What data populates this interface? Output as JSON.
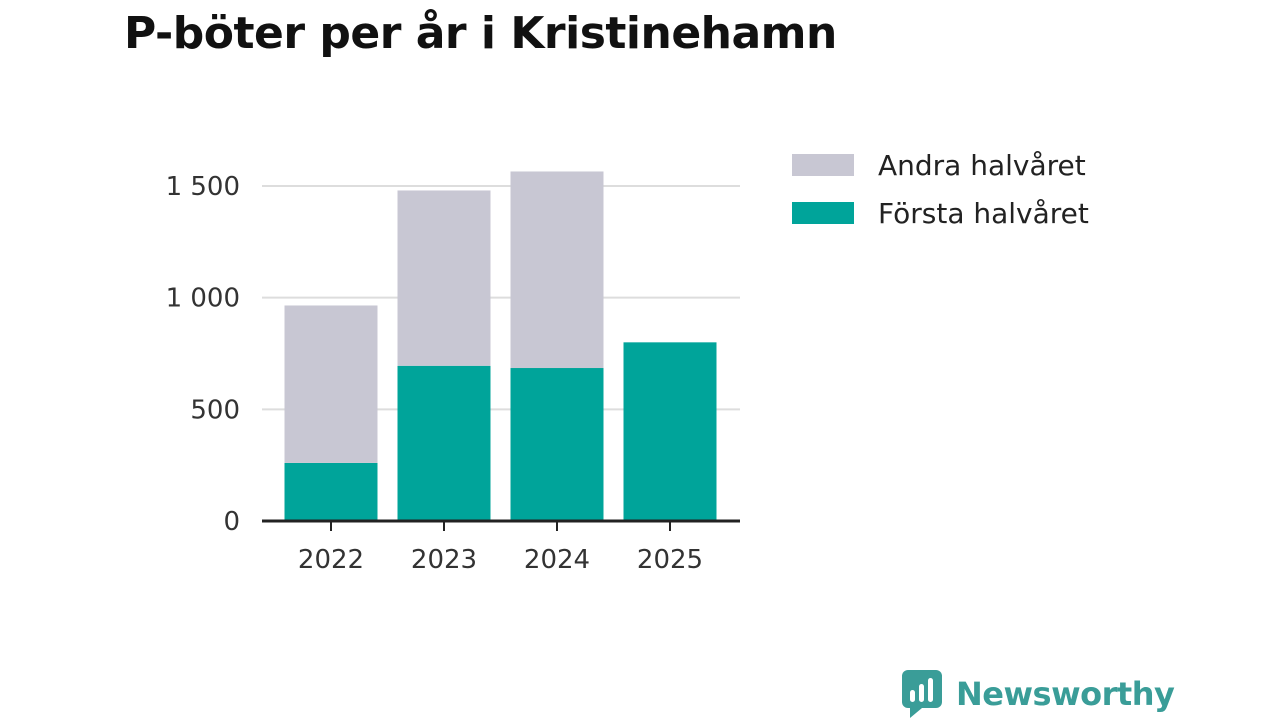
{
  "title": "P-böter per år i Kristinehamn",
  "brand": {
    "name": "Newsworthy",
    "icon": "bar-chart-speech-bubble-icon"
  },
  "colors": {
    "first_half": "#00a49a",
    "second_half": "#c8c7d3",
    "grid": "#dddddd",
    "axis": "#222222"
  },
  "chart_data": {
    "type": "bar",
    "stacked": true,
    "categories": [
      "2022",
      "2023",
      "2024",
      "2025"
    ],
    "series": [
      {
        "name": "Första halvåret",
        "values": [
          260,
          695,
          685,
          800
        ]
      },
      {
        "name": "Andra halvåret",
        "values": [
          705,
          785,
          880,
          0
        ]
      }
    ],
    "yticks": [
      0,
      500,
      1000,
      1500
    ],
    "ytick_labels": [
      "0",
      "500",
      "1 000",
      "1 500"
    ],
    "ylim": [
      0,
      1600
    ],
    "grid": true,
    "legend": {
      "placement": "top-right",
      "entries": [
        "Andra halvåret",
        "Första halvåret"
      ]
    }
  }
}
